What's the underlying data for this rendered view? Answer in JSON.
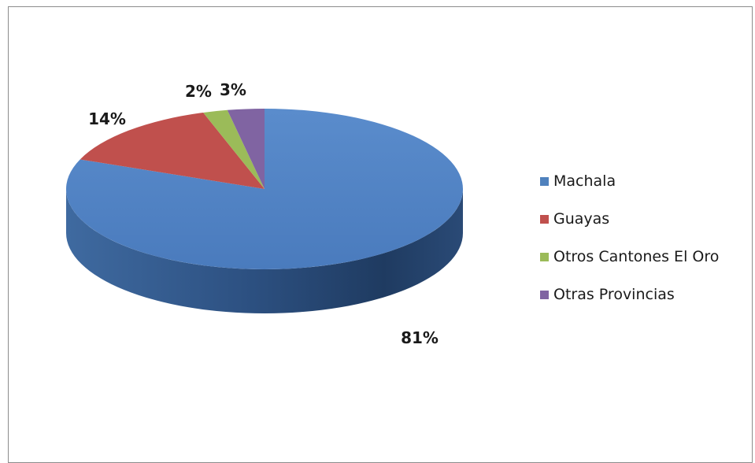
{
  "chart_data": {
    "type": "pie",
    "style": "3d",
    "categories": [
      "Machala",
      "Guayas",
      "Otros Cantones El Oro",
      "Otras Provincias"
    ],
    "values": [
      81,
      14,
      2,
      3
    ],
    "labels": [
      "81%",
      "14%",
      "2%",
      "3%"
    ],
    "colors": [
      "#4F81BD",
      "#C0504D",
      "#9BBB59",
      "#8064A2"
    ],
    "legend_placement": "right"
  }
}
